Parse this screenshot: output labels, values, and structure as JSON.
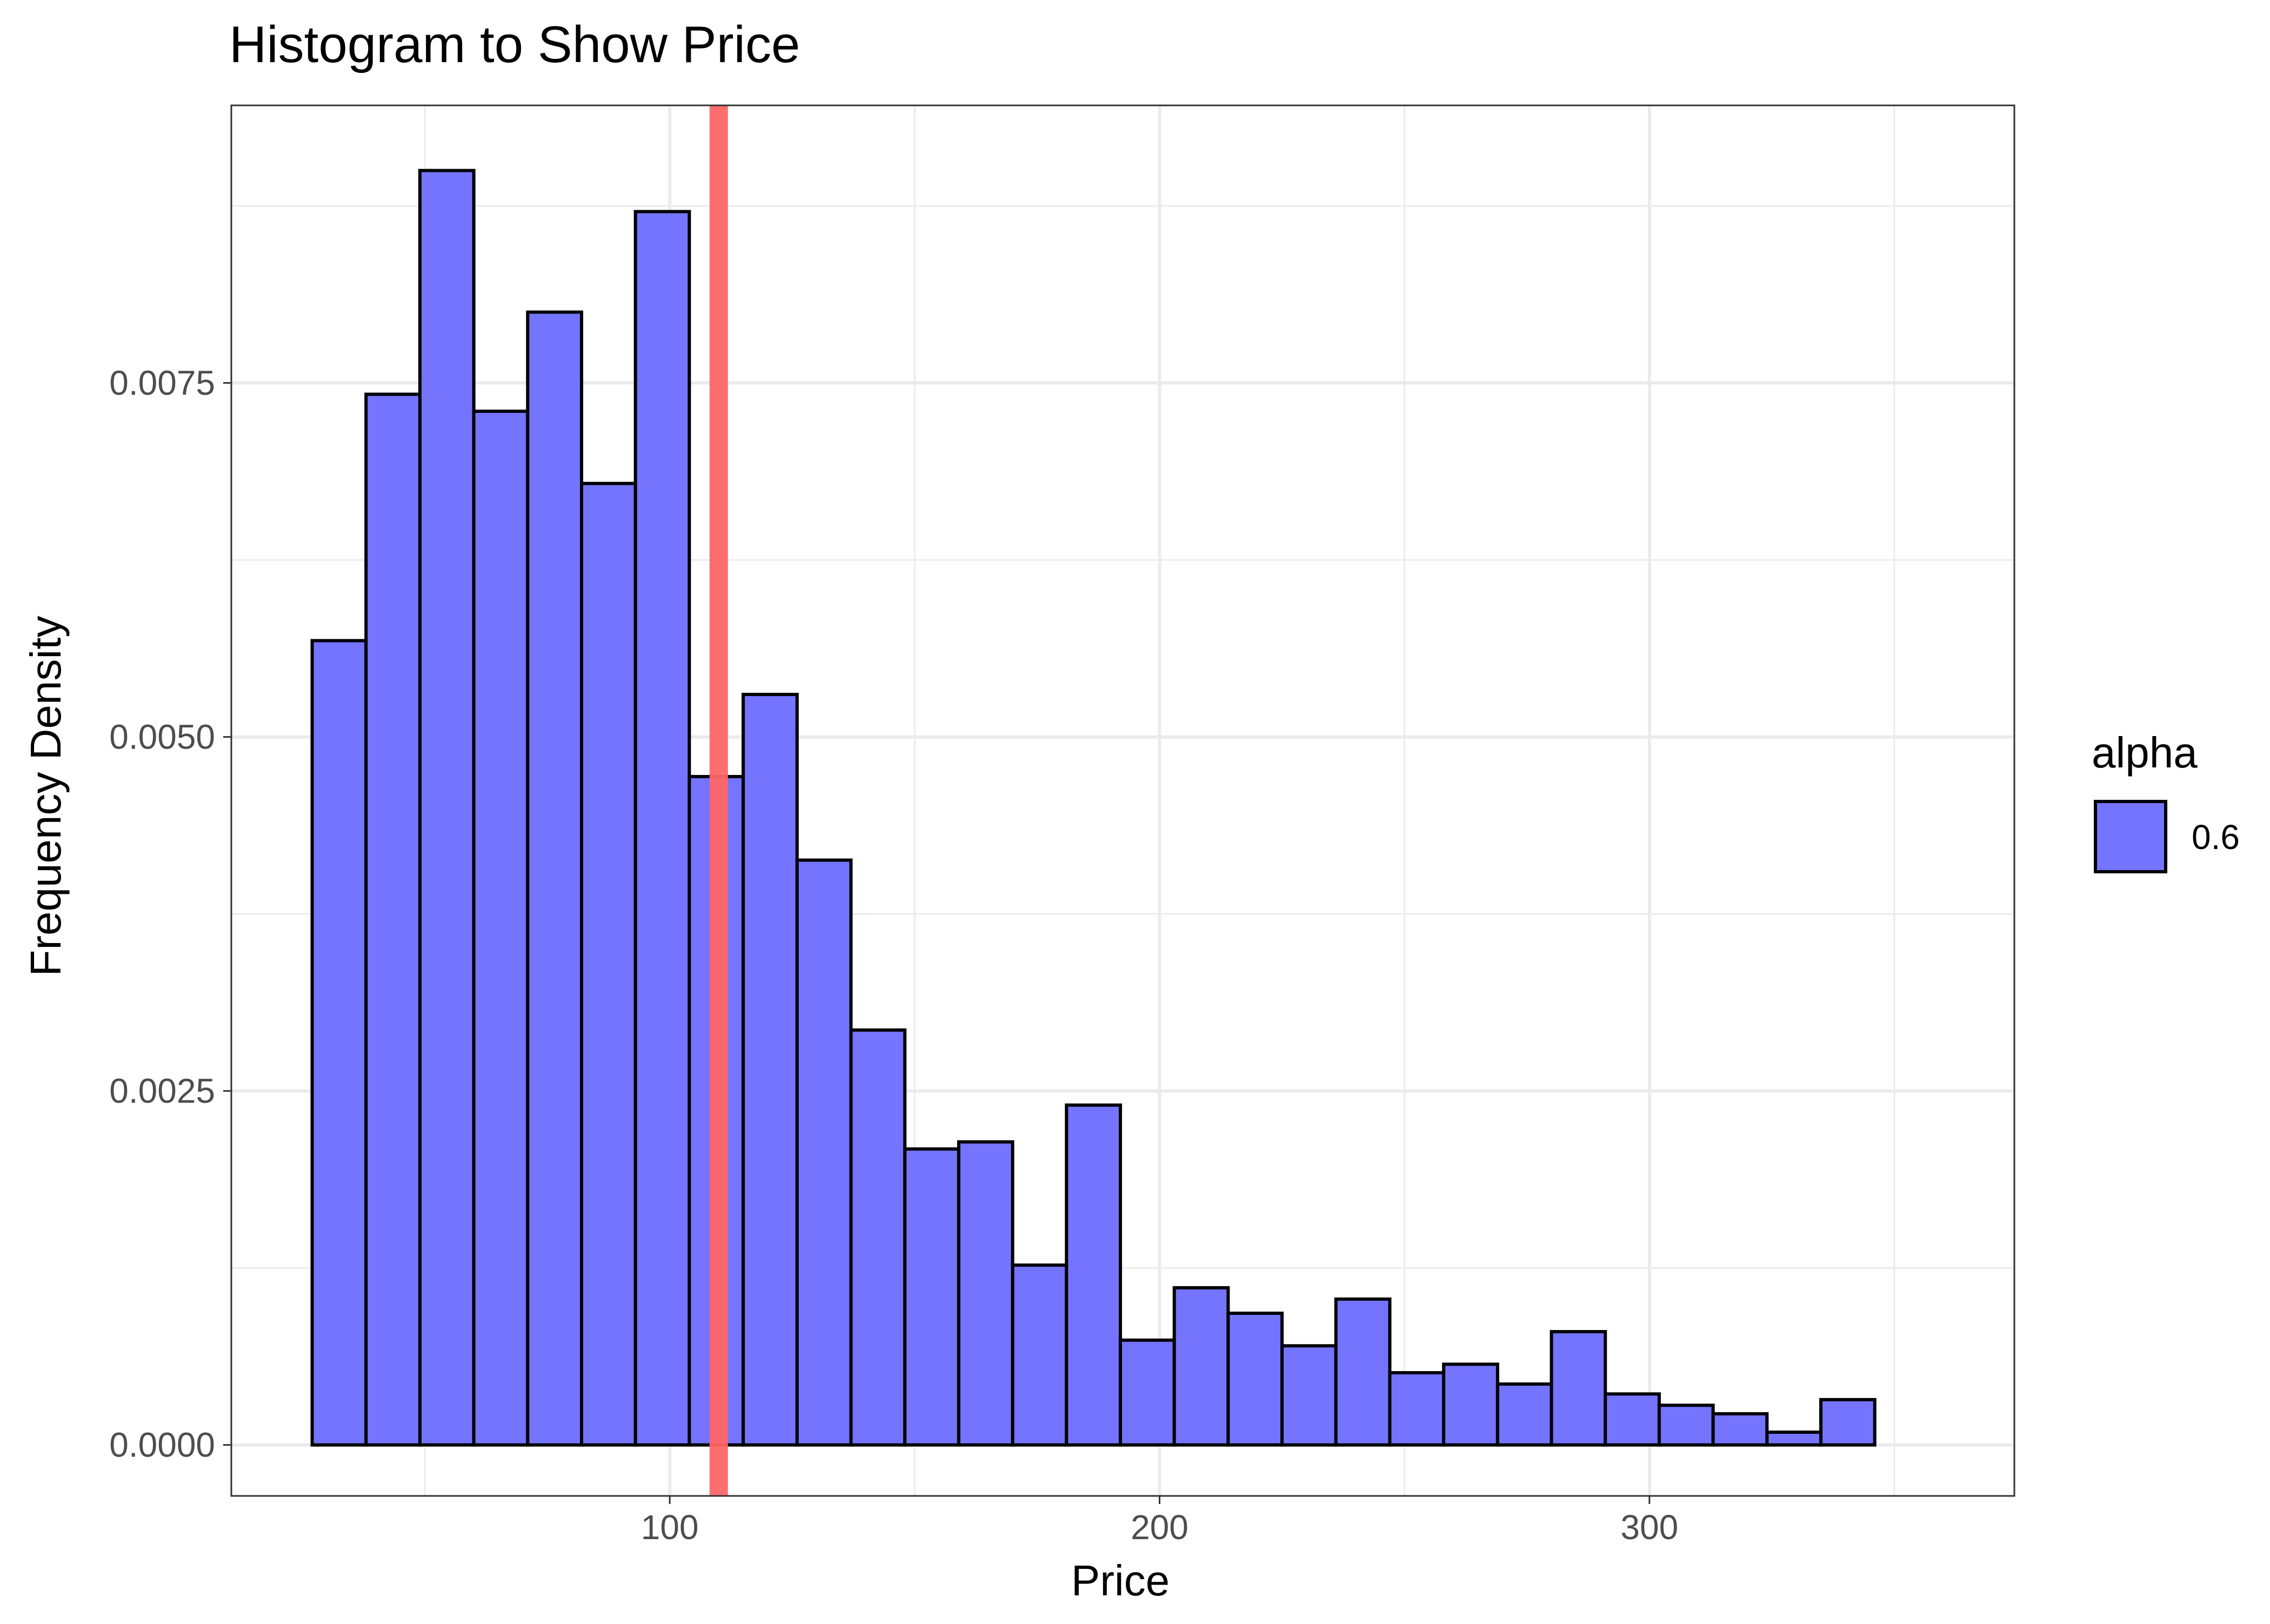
{
  "chart_data": {
    "type": "bar",
    "title": "Histogram to Show Price",
    "xlabel": "Price",
    "ylabel": "Frequency Density",
    "xlim": [
      10.5,
      374.5
    ],
    "ylim": [
      -0.00036,
      0.00946
    ],
    "x_ticks": [
      100,
      200,
      300
    ],
    "x_tick_labels": [
      "100",
      "200",
      "300"
    ],
    "y_ticks": [
      0,
      0.0025,
      0.005,
      0.0075
    ],
    "y_tick_labels": [
      "0.0000",
      "0.0025",
      "0.0050",
      "0.0075"
    ],
    "x_minor_ticks": [
      50,
      150,
      250,
      350
    ],
    "y_minor_ticks": [
      0.00125,
      0.00375,
      0.00625,
      0.00875
    ],
    "bin_width": 11,
    "bins_start": 27,
    "values": [
      0.00568,
      0.00742,
      0.009,
      0.0073,
      0.008,
      0.00679,
      0.00871,
      0.00472,
      0.0053,
      0.00413,
      0.00293,
      0.00209,
      0.00214,
      0.00127,
      0.0024,
      0.00074,
      0.00111,
      0.00093,
      0.0007,
      0.00103,
      0.00051,
      0.00057,
      0.00043,
      0.0008,
      0.00036,
      0.00028,
      0.00022,
      9e-05,
      0.00032
    ],
    "vline_x": 110,
    "grid": true,
    "legend": {
      "title": "alpha",
      "label": "0.6",
      "position": "right"
    },
    "colors": {
      "bar_fill": "#7474ff",
      "bar_stroke": "#000000",
      "vline": "#ff6666",
      "grid": "#ebebeb",
      "panel_border": "#333333"
    }
  }
}
